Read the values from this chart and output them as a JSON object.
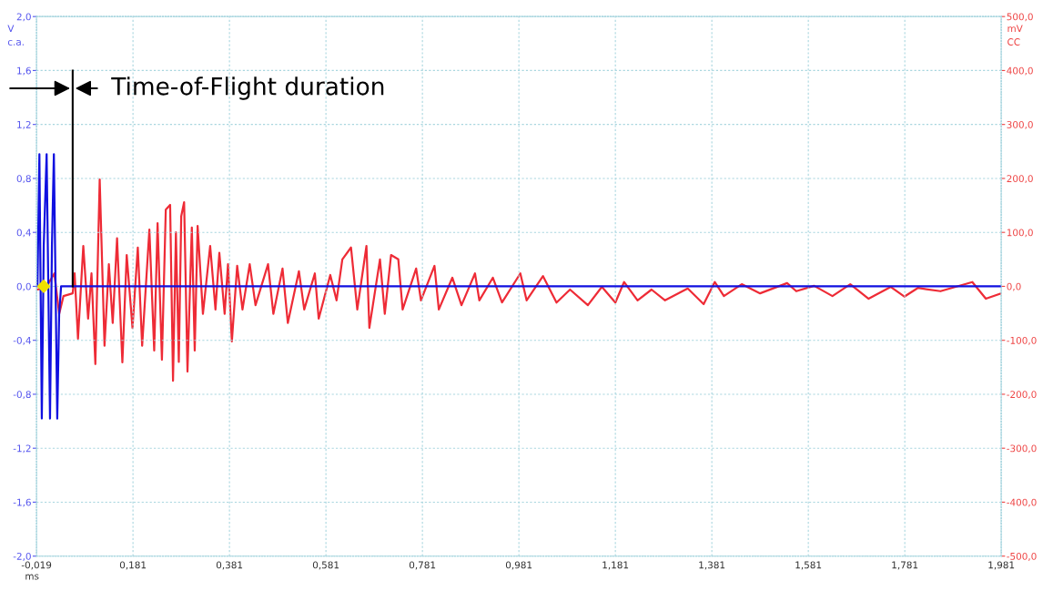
{
  "chart_data": {
    "type": "line",
    "xlabel": "ms",
    "ylabel": "V\nc.a.",
    "y2label": "mV\nCC",
    "annotations": [
      "Time-of-Flight duration"
    ],
    "xlim": [
      -0.019,
      1.981
    ],
    "xticks": [
      {
        "value": -0.019,
        "label": "-0,019"
      },
      {
        "value": 0.181,
        "label": "0,181"
      },
      {
        "value": 0.381,
        "label": "0,381"
      },
      {
        "value": 0.581,
        "label": "0,581"
      },
      {
        "value": 0.781,
        "label": "0,781"
      },
      {
        "value": 0.981,
        "label": "0,981"
      },
      {
        "value": 1.181,
        "label": "1,181"
      },
      {
        "value": 1.381,
        "label": "1,381"
      },
      {
        "value": 1.581,
        "label": "1,581"
      },
      {
        "value": 1.781,
        "label": "1,781"
      },
      {
        "value": 1.981,
        "label": "1,981"
      }
    ],
    "ylim": [
      -2.0,
      2.0
    ],
    "yticks": [
      {
        "value": -2.0,
        "label": "-2,0"
      },
      {
        "value": -1.6,
        "label": "-1,6"
      },
      {
        "value": -1.2,
        "label": "-1,2"
      },
      {
        "value": -0.8,
        "label": "-0,8"
      },
      {
        "value": -0.4,
        "label": "-0,4"
      },
      {
        "value": 0.0,
        "label": "0,0"
      },
      {
        "value": 0.4,
        "label": "0,4"
      },
      {
        "value": 0.8,
        "label": "0,8"
      },
      {
        "value": 1.2,
        "label": "1,2"
      },
      {
        "value": 1.6,
        "label": "1,6"
      },
      {
        "value": 2.0,
        "label": "2,0"
      }
    ],
    "y2lim": [
      -500,
      500
    ],
    "y2ticks": [
      {
        "value": -500,
        "label": "-500,0"
      },
      {
        "value": -400,
        "label": "-400,0"
      },
      {
        "value": -300,
        "label": "-300,0"
      },
      {
        "value": -200,
        "label": "-200,0"
      },
      {
        "value": -100,
        "label": "-100,0"
      },
      {
        "value": 0,
        "label": "0,0"
      },
      {
        "value": 100,
        "label": "100,0"
      },
      {
        "value": 200,
        "label": "200,0"
      },
      {
        "value": 300,
        "label": "300,0"
      },
      {
        "value": 400,
        "label": "400,0"
      },
      {
        "value": 500,
        "label": "500,0"
      }
    ],
    "grid": true,
    "line_style": "solid",
    "marker": "none",
    "series": [
      {
        "color": "#ee2b36",
        "axis": "y2",
        "x": [
          -0.019,
          0.0,
          0.018,
          0.028,
          0.037,
          0.056,
          0.06,
          0.067,
          0.078,
          0.088,
          0.095,
          0.103,
          0.112,
          0.122,
          0.131,
          0.139,
          0.148,
          0.159,
          0.168,
          0.18,
          0.191,
          0.2,
          0.215,
          0.225,
          0.232,
          0.241,
          0.249,
          0.258,
          0.264,
          0.27,
          0.276,
          0.281,
          0.287,
          0.294,
          0.303,
          0.309,
          0.315,
          0.326,
          0.341,
          0.352,
          0.36,
          0.371,
          0.378,
          0.386,
          0.397,
          0.408,
          0.423,
          0.435,
          0.461,
          0.472,
          0.491,
          0.502,
          0.525,
          0.536,
          0.558,
          0.566,
          0.59,
          0.603,
          0.615,
          0.633,
          0.646,
          0.665,
          0.671,
          0.693,
          0.703,
          0.716,
          0.731,
          0.74,
          0.768,
          0.778,
          0.806,
          0.815,
          0.843,
          0.862,
          0.89,
          0.899,
          0.927,
          0.946,
          0.984,
          0.997,
          1.031,
          1.059,
          1.087,
          1.124,
          1.153,
          1.181,
          1.199,
          1.227,
          1.256,
          1.284,
          1.331,
          1.364,
          1.387,
          1.406,
          1.443,
          1.481,
          1.537,
          1.556,
          1.593,
          1.631,
          1.668,
          1.706,
          1.752,
          1.78,
          1.808,
          1.855,
          1.921,
          1.949,
          1.981
        ],
        "values": [
          -6,
          -3,
          24,
          -51,
          -18,
          -13,
          24,
          -97,
          75,
          -60,
          24,
          -144,
          198,
          -110,
          41,
          -68,
          89,
          -141,
          58,
          -77,
          72,
          -110,
          105,
          -119,
          117,
          -136,
          142,
          151,
          -175,
          100,
          -140,
          130,
          156,
          -158,
          109,
          -119,
          112,
          -51,
          75,
          -43,
          62,
          -51,
          41,
          -102,
          38,
          -43,
          41,
          -35,
          41,
          -51,
          33,
          -68,
          28,
          -43,
          24,
          -60,
          21,
          -26,
          50,
          72,
          -43,
          75,
          -77,
          50,
          -51,
          58,
          50,
          -43,
          33,
          -26,
          38,
          -43,
          16,
          -35,
          24,
          -26,
          16,
          -30,
          24,
          -26,
          19,
          -30,
          -6,
          -35,
          -1,
          -30,
          8,
          -26,
          -6,
          -26,
          -4,
          -33,
          8,
          -18,
          4,
          -13,
          6,
          -9,
          1,
          -18,
          4,
          -23,
          -1,
          -19,
          -3,
          -9,
          8,
          -23,
          -13
        ]
      },
      {
        "color": "#1010e0",
        "x": [
          -0.019,
          -0.017,
          -0.013,
          -0.008,
          -0.004,
          0.002,
          0.009,
          0.013,
          0.017,
          0.024,
          0.028,
          0.032,
          1.981
        ],
        "values": [
          0,
          0,
          0.98,
          -0.98,
          0.3,
          0.98,
          -0.98,
          0.3,
          0.98,
          -0.98,
          -0.2,
          0,
          0
        ]
      },
      {
        "type": "scatter",
        "marker": "diamond",
        "color": "#f0e000",
        "x": [
          -0.004
        ],
        "values": [
          0
        ]
      }
    ]
  }
}
